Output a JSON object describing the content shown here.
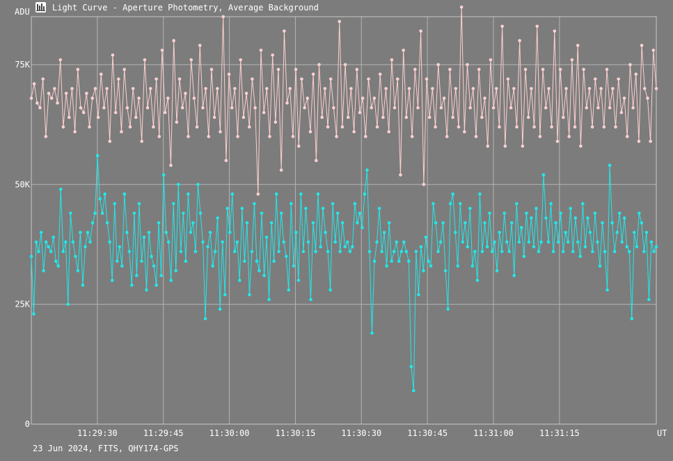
{
  "window": {
    "title": "Light Curve - Aperture Photometry, Average Background",
    "footer": "23 Jun 2024, FITS, QHY174-GPS"
  },
  "icons": {
    "app": "light-curve-app-icon"
  },
  "colors": {
    "background": "#7c7c7c",
    "grid": "#b4b4b4",
    "series1": "#ffd0d0",
    "series2": "#22e8ea"
  },
  "chart_data": {
    "type": "line",
    "title": "Light Curve - Aperture Photometry, Average Background",
    "xlabel": "UT",
    "ylabel": "ADU",
    "ylim": [
      0,
      85000
    ],
    "xlim": [
      "11:29:15",
      "11:31:37"
    ],
    "grid": true,
    "yticks": [
      {
        "value": 0,
        "label": "0"
      },
      {
        "value": 25000,
        "label": "25K"
      },
      {
        "value": 50000,
        "label": "50K"
      },
      {
        "value": 75000,
        "label": "75K"
      }
    ],
    "xticks": [
      {
        "value": "11:29:30",
        "label": "11:29:30"
      },
      {
        "value": "11:29:45",
        "label": "11:29:45"
      },
      {
        "value": "11:30:00",
        "label": "11:30:00"
      },
      {
        "value": "11:30:15",
        "label": "11:30:15"
      },
      {
        "value": "11:30:30",
        "label": "11:30:30"
      },
      {
        "value": "11:30:45",
        "label": "11:30:45"
      },
      {
        "value": "11:31:00",
        "label": "11:31:00"
      },
      {
        "value": "11:31:15",
        "label": "11:31:15"
      }
    ],
    "x_first": "11:29:15",
    "x_last": "11:31:37",
    "series": [
      {
        "values": [
          68000,
          71000,
          67000,
          66000,
          72000,
          60000,
          69000,
          68000,
          70000,
          67000,
          76000,
          62000,
          69000,
          64000,
          70000,
          61000,
          74000,
          66000,
          65000,
          69000,
          62000,
          68000,
          70000,
          64000,
          73000,
          66000,
          70000,
          59000,
          77000,
          65000,
          72000,
          61000,
          74000,
          66000,
          62000,
          70000,
          64000,
          68000,
          59000,
          76000,
          66000,
          70000,
          62000,
          72000,
          60000,
          78000,
          65000,
          68000,
          54000,
          80000,
          63000,
          72000,
          66000,
          69000,
          60000,
          76000,
          68000,
          62000,
          79000,
          66000,
          70000,
          60000,
          74000,
          64000,
          70000,
          61000,
          85000,
          55000,
          73000,
          66000,
          70000,
          60000,
          76000,
          64000,
          69000,
          62000,
          72000,
          66000,
          48000,
          78000,
          65000,
          70000,
          60000,
          77000,
          63000,
          74000,
          53000,
          82000,
          67000,
          70000,
          60000,
          74000,
          58000,
          72000,
          66000,
          68000,
          61000,
          73000,
          55000,
          75000,
          64000,
          70000,
          62000,
          72000,
          66000,
          60000,
          84000,
          62000,
          75000,
          64000,
          70000,
          61000,
          74000,
          65000,
          68000,
          60000,
          72000,
          66000,
          68000,
          62000,
          73000,
          64000,
          70000,
          61000,
          76000,
          66000,
          72000,
          52000,
          78000,
          64000,
          70000,
          60000,
          74000,
          66000,
          82000,
          50000,
          72000,
          64000,
          70000,
          62000,
          75000,
          66000,
          68000,
          60000,
          74000,
          64000,
          70000,
          62000,
          87000,
          61000,
          75000,
          66000,
          70000,
          60000,
          74000,
          64000,
          68000,
          58000,
          76000,
          66000,
          70000,
          62000,
          83000,
          58000,
          72000,
          66000,
          70000,
          62000,
          80000,
          58000,
          74000,
          64000,
          70000,
          62000,
          83000,
          60000,
          74000,
          66000,
          70000,
          62000,
          82000,
          59000,
          74000,
          64000,
          70000,
          60000,
          76000,
          62000,
          79000,
          58000,
          74000,
          66000,
          70000,
          62000,
          72000,
          66000,
          70000,
          62000,
          74000,
          66000,
          70000,
          62000,
          72000,
          65000,
          68000,
          60000,
          75000,
          66000,
          73000,
          59000,
          79000,
          70000,
          68000,
          59000,
          78000,
          70000
        ],
        "color": "#ffd0d0"
      },
      {
        "values": [
          35000,
          23000,
          38000,
          36000,
          40000,
          32000,
          38000,
          37000,
          36000,
          39000,
          34000,
          33000,
          49000,
          36000,
          38000,
          25000,
          44000,
          38000,
          35000,
          32000,
          40000,
          29000,
          37000,
          40000,
          38000,
          42000,
          44000,
          56000,
          47000,
          44000,
          48000,
          42000,
          38000,
          30000,
          46000,
          34000,
          37000,
          33000,
          48000,
          40000,
          36000,
          29000,
          44000,
          31000,
          46000,
          34000,
          39000,
          28000,
          40000,
          35000,
          33000,
          29000,
          42000,
          31000,
          52000,
          40000,
          38000,
          30000,
          46000,
          32000,
          50000,
          36000,
          44000,
          34000,
          48000,
          40000,
          42000,
          36000,
          50000,
          44000,
          38000,
          22000,
          37000,
          40000,
          33000,
          36000,
          43000,
          24000,
          38000,
          27000,
          45000,
          40000,
          48000,
          36000,
          38000,
          30000,
          45000,
          34000,
          42000,
          27000,
          36000,
          46000,
          34000,
          32000,
          44000,
          31000,
          39000,
          26000,
          42000,
          34000,
          48000,
          36000,
          44000,
          38000,
          35000,
          28000,
          46000,
          33000,
          40000,
          30000,
          48000,
          36000,
          45000,
          38000,
          26000,
          42000,
          36000,
          48000,
          37000,
          45000,
          40000,
          36000,
          28000,
          46000,
          38000,
          44000,
          36000,
          42000,
          37000,
          38000,
          36000,
          37000,
          46000,
          42000,
          44000,
          41000,
          48000,
          53000,
          36000,
          19000,
          34000,
          38000,
          45000,
          36000,
          40000,
          33000,
          42000,
          34000,
          36000,
          38000,
          34000,
          36000,
          38000,
          36000,
          34000,
          12000,
          7000,
          36000,
          27000,
          37000,
          32000,
          39000,
          34000,
          33000,
          46000,
          42000,
          36000,
          38000,
          42000,
          32000,
          24000,
          46000,
          48000,
          40000,
          33000,
          46000,
          38000,
          42000,
          37000,
          45000,
          33000,
          36000,
          30000,
          48000,
          36000,
          42000,
          37000,
          44000,
          36000,
          38000,
          32000,
          40000,
          36000,
          44000,
          38000,
          36000,
          42000,
          31000,
          46000,
          38000,
          41000,
          35000,
          44000,
          38000,
          43000,
          37000,
          45000,
          36000,
          38000,
          52000,
          43000,
          38000,
          46000,
          36000,
          42000,
          38000,
          44000,
          36000,
          40000,
          38000,
          45000,
          36000,
          43000,
          38000,
          35000,
          46000,
          37000,
          43000,
          40000,
          36000,
          44000,
          38000,
          33000,
          42000,
          36000,
          28000,
          54000,
          42000,
          36000,
          40000,
          44000,
          38000,
          43000,
          37000,
          36000,
          22000,
          40000,
          37000,
          44000,
          42000,
          36000,
          40000,
          26000,
          38000,
          36000,
          37000
        ],
        "color": "#22e8ea"
      }
    ]
  }
}
